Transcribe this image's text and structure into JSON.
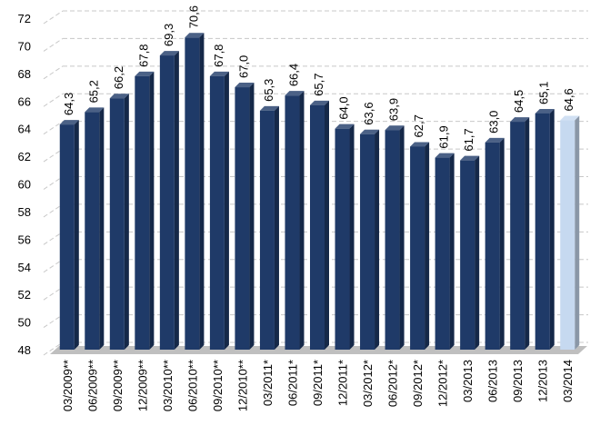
{
  "chart_data": {
    "type": "bar3d",
    "categories": [
      "03/2009**",
      "06/2009**",
      "09/2009**",
      "12/2009**",
      "03/2010**",
      "06/2010**",
      "09/2010**",
      "12/2010**",
      "03/2011*",
      "06/2011*",
      "09/2011*",
      "12/2011*",
      "03/2012*",
      "06/2012*",
      "09/2012*",
      "12/2012*",
      "03/2013",
      "06/2013",
      "09/2013",
      "12/2013",
      "03/2014"
    ],
    "values": [
      64.3,
      65.2,
      66.2,
      67.8,
      69.3,
      70.6,
      67.8,
      67.0,
      65.3,
      66.4,
      65.7,
      64.0,
      63.6,
      63.9,
      62.7,
      61.9,
      61.7,
      63.0,
      64.5,
      65.1,
      64.6
    ],
    "value_labels": [
      "64,3",
      "65,2",
      "66,2",
      "67,8",
      "69,3",
      "70,6",
      "67,8",
      "67,0",
      "65,3",
      "66,4",
      "65,7",
      "64,0",
      "63,6",
      "63,9",
      "62,7",
      "61,9",
      "61,7",
      "63,0",
      "64,5",
      "65,1",
      "64,6"
    ],
    "colors": [
      "#1f3a68",
      "#1f3a68",
      "#1f3a68",
      "#1f3a68",
      "#1f3a68",
      "#1f3a68",
      "#1f3a68",
      "#1f3a68",
      "#1f3a68",
      "#1f3a68",
      "#1f3a68",
      "#1f3a68",
      "#1f3a68",
      "#1f3a68",
      "#1f3a68",
      "#1f3a68",
      "#1f3a68",
      "#1f3a68",
      "#1f3a68",
      "#1f3a68",
      "#c6d9f0"
    ],
    "ylim": [
      48,
      72
    ],
    "yticks": [
      48,
      50,
      52,
      54,
      56,
      58,
      60,
      62,
      64,
      66,
      68,
      70,
      72
    ],
    "grid": true
  }
}
